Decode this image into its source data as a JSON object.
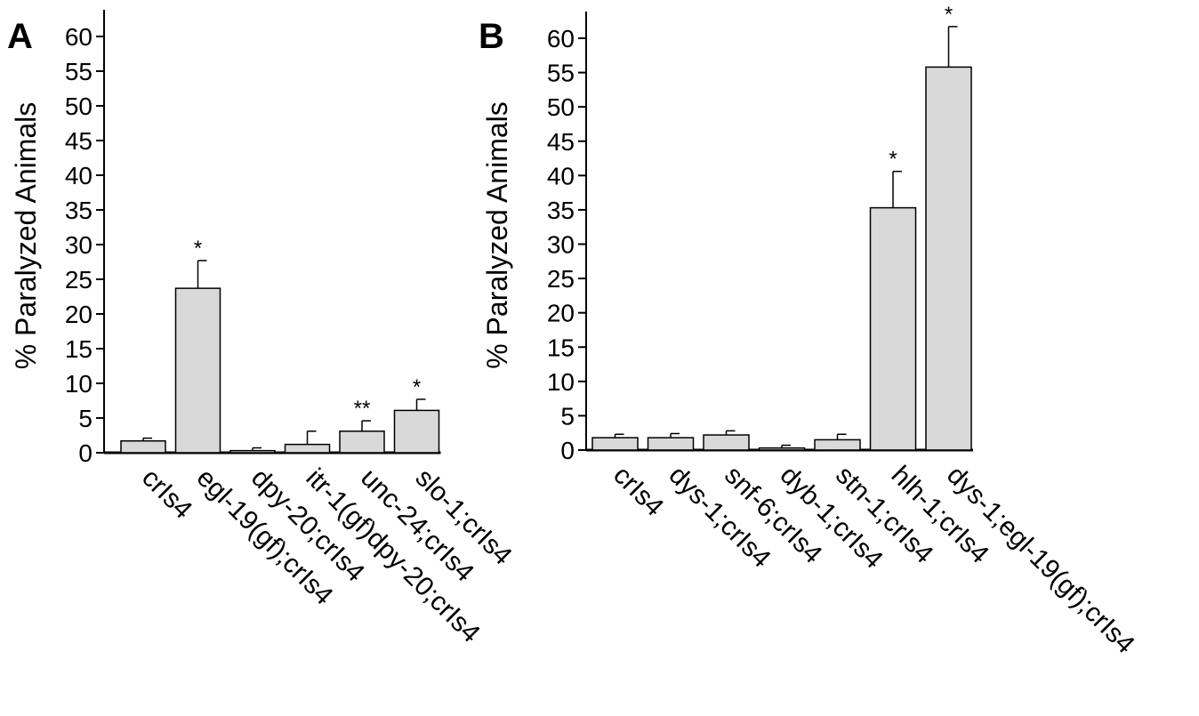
{
  "chart_data": [
    {
      "panel": "A",
      "type": "bar",
      "ylabel": "% Paralyzed Animals",
      "xlabel": "",
      "ylim": [
        0,
        60
      ],
      "yticks": [
        0,
        5,
        10,
        15,
        20,
        25,
        30,
        35,
        40,
        45,
        50,
        55,
        60
      ],
      "grid": false,
      "categories": [
        "crIs4",
        "egl-19(gf);crIs4",
        "dpy-20;crIs4",
        "itr-1(gf)dpy-20;crIs4",
        "unc-24;crIs4",
        "slo-1;crIs4"
      ],
      "values": [
        1.7,
        23.7,
        0.3,
        1.2,
        3.1,
        6.1
      ],
      "errors": [
        0.4,
        4.0,
        0.4,
        1.9,
        1.5,
        1.6
      ],
      "significance": [
        "",
        "*",
        "",
        "",
        "**",
        "*"
      ],
      "bar_color": "#d9d9d9"
    },
    {
      "panel": "B",
      "type": "bar",
      "ylabel": "% Paralyzed Animals",
      "xlabel": "",
      "ylim": [
        0,
        60
      ],
      "yticks": [
        0,
        5,
        10,
        15,
        20,
        25,
        30,
        35,
        40,
        45,
        50,
        55,
        60
      ],
      "grid": false,
      "categories": [
        "crIs4",
        "dys-1;crIs4",
        "snf-6;crIs4",
        "dyb-1;crIs4",
        "stn-1;crIs4",
        "hlh-1;crIs4",
        "dys-1;egl-19(gf);crIs4"
      ],
      "values": [
        1.8,
        1.8,
        2.2,
        0.3,
        1.5,
        35.3,
        55.8
      ],
      "errors": [
        0.5,
        0.6,
        0.6,
        0.4,
        0.8,
        5.3,
        5.9
      ],
      "significance": [
        "",
        "",
        "",
        "",
        "",
        "*",
        "*"
      ],
      "bar_color": "#d9d9d9"
    }
  ]
}
